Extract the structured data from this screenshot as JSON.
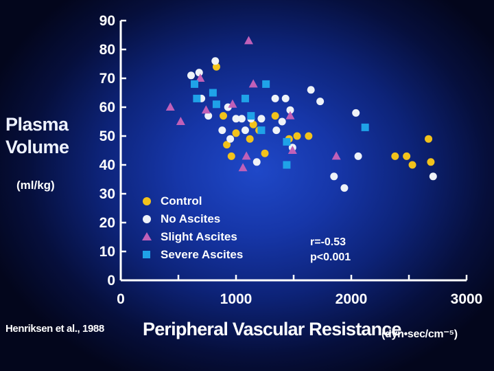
{
  "chart_data": {
    "type": "scatter",
    "ylabel_line1": "Plasma",
    "ylabel_line2": "Volume",
    "ylabel_units": "(ml/kg)",
    "xlabel": "Peripheral Vascular Resistance",
    "xlabel_units": "(dyn•sec/cm⁻⁵)",
    "citation": "Henriksen et al., 1988",
    "stats": {
      "r": "r=-0.53",
      "p": "p<0.001"
    },
    "xlim": [
      0,
      3000
    ],
    "ylim": [
      0,
      90
    ],
    "x_ticks": [
      0,
      1000,
      2000,
      3000
    ],
    "x_tick_labels": [
      "0",
      "1000",
      "2000",
      "3000"
    ],
    "y_ticks": [
      0,
      10,
      20,
      30,
      40,
      50,
      60,
      70,
      80,
      90
    ],
    "y_tick_labels": [
      "0",
      "10",
      "20",
      "30",
      "40",
      "50",
      "60",
      "70",
      "80",
      "90"
    ],
    "series": [
      {
        "name": "Control",
        "marker": "circle",
        "color": "#f2c21b",
        "points": [
          [
            830,
            74
          ],
          [
            890,
            57
          ],
          [
            920,
            47
          ],
          [
            960,
            43
          ],
          [
            1000,
            51
          ],
          [
            1120,
            49
          ],
          [
            1150,
            54
          ],
          [
            1200,
            52
          ],
          [
            1250,
            44
          ],
          [
            1340,
            57
          ],
          [
            1460,
            49
          ],
          [
            1530,
            50
          ],
          [
            1630,
            50
          ],
          [
            2380,
            43
          ],
          [
            2480,
            43
          ],
          [
            2530,
            40
          ],
          [
            2670,
            49
          ],
          [
            2690,
            41
          ]
        ]
      },
      {
        "name": "No Ascites",
        "marker": "circle",
        "color": "#eef2f8",
        "points": [
          [
            610,
            71
          ],
          [
            680,
            72
          ],
          [
            700,
            63
          ],
          [
            760,
            57
          ],
          [
            820,
            76
          ],
          [
            880,
            52
          ],
          [
            930,
            60
          ],
          [
            950,
            49
          ],
          [
            1000,
            56
          ],
          [
            1050,
            56
          ],
          [
            1080,
            52
          ],
          [
            1130,
            56
          ],
          [
            1180,
            41
          ],
          [
            1220,
            56
          ],
          [
            1340,
            63
          ],
          [
            1350,
            52
          ],
          [
            1400,
            55
          ],
          [
            1430,
            63
          ],
          [
            1470,
            59
          ],
          [
            1490,
            46
          ],
          [
            1650,
            66
          ],
          [
            1730,
            62
          ],
          [
            1850,
            36
          ],
          [
            1940,
            32
          ],
          [
            2040,
            58
          ],
          [
            2060,
            43
          ],
          [
            2710,
            36
          ]
        ]
      },
      {
        "name": "Slight Ascites",
        "marker": "triangle",
        "color": "#c060b8",
        "points": [
          [
            430,
            60
          ],
          [
            520,
            55
          ],
          [
            690,
            70
          ],
          [
            740,
            59
          ],
          [
            970,
            61
          ],
          [
            1060,
            39
          ],
          [
            1090,
            43
          ],
          [
            1110,
            83
          ],
          [
            1150,
            68
          ],
          [
            1470,
            57
          ],
          [
            1490,
            45
          ],
          [
            1870,
            43
          ]
        ]
      },
      {
        "name": "Severe Ascites",
        "marker": "square",
        "color": "#1fa2e8",
        "points": [
          [
            640,
            68
          ],
          [
            660,
            63
          ],
          [
            800,
            65
          ],
          [
            830,
            61
          ],
          [
            1080,
            63
          ],
          [
            1130,
            57
          ],
          [
            1220,
            52
          ],
          [
            1260,
            68
          ],
          [
            1440,
            48
          ],
          [
            1440,
            40
          ],
          [
            2120,
            53
          ]
        ]
      }
    ],
    "legend": [
      "Control",
      "No Ascites",
      "Slight Ascites",
      "Severe Ascites"
    ]
  }
}
